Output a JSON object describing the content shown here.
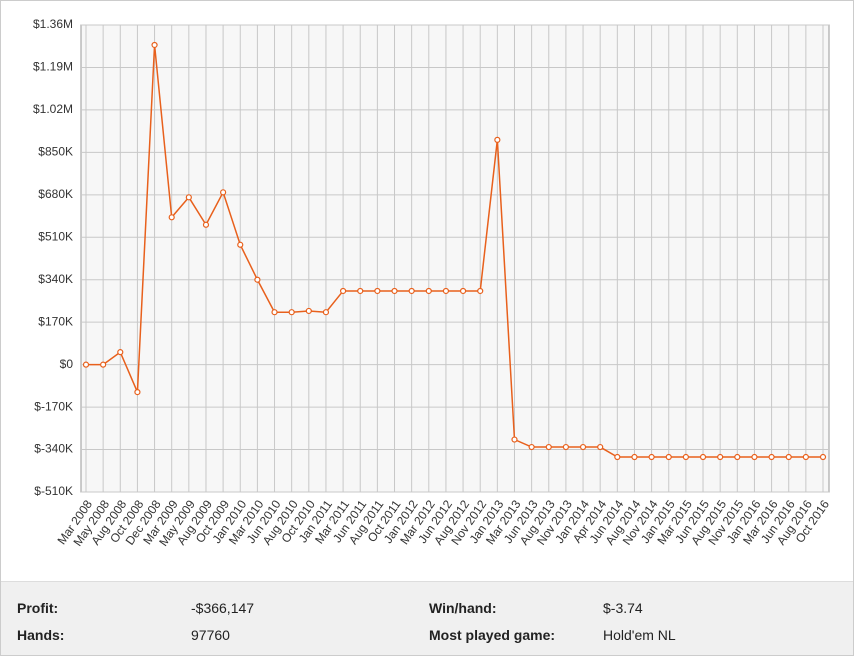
{
  "chart_data": {
    "type": "line",
    "categories": [
      "Mar 2008",
      "May 2008",
      "Aug 2008",
      "Oct 2008",
      "Dec 2008",
      "Mar 2009",
      "May 2009",
      "Aug 2009",
      "Oct 2009",
      "Jan 2010",
      "Mar 2010",
      "Jun 2010",
      "Aug 2010",
      "Oct 2010",
      "Jan 2011",
      "Mar 2011",
      "Jun 2011",
      "Aug 2011",
      "Oct 2011",
      "Jan 2012",
      "Mar 2012",
      "Jun 2012",
      "Aug 2012",
      "Nov 2012",
      "Jan 2013",
      "Mar 2013",
      "Jun 2013",
      "Aug 2013",
      "Nov 2013",
      "Jan 2014",
      "Apr 2014",
      "Jun 2014",
      "Aug 2014",
      "Nov 2014",
      "Jan 2015",
      "Mar 2015",
      "Jun 2015",
      "Aug 2015",
      "Nov 2015",
      "Jan 2016",
      "Mar 2016",
      "Jun 2016",
      "Aug 2016",
      "Oct 2016"
    ],
    "values": [
      0,
      0,
      50000,
      -110000,
      1280000,
      590000,
      670000,
      560000,
      690000,
      480000,
      340000,
      210000,
      210000,
      215000,
      210000,
      295000,
      295000,
      295000,
      295000,
      295000,
      295000,
      295000,
      295000,
      295000,
      900000,
      -300000,
      -330000,
      -330000,
      -330000,
      -330000,
      -330000,
      -370000,
      -370000,
      -370000,
      -370000,
      -370000,
      -370000,
      -370000,
      -370000,
      -370000,
      -370000,
      -370000,
      -370000,
      -370000
    ],
    "color": "#e8601c",
    "ylim": [
      -510000,
      1360000
    ],
    "yticks": [
      {
        "value": -510000,
        "label": "$-510K"
      },
      {
        "value": -340000,
        "label": "$-340K"
      },
      {
        "value": -170000,
        "label": "$-170K"
      },
      {
        "value": 0,
        "label": "$0"
      },
      {
        "value": 170000,
        "label": "$170K"
      },
      {
        "value": 340000,
        "label": "$340K"
      },
      {
        "value": 510000,
        "label": "$510K"
      },
      {
        "value": 680000,
        "label": "$680K"
      },
      {
        "value": 850000,
        "label": "$850K"
      },
      {
        "value": 1020000,
        "label": "$1.02M"
      },
      {
        "value": 1190000,
        "label": "$1.19M"
      },
      {
        "value": 1360000,
        "label": "$1.36M"
      }
    ],
    "grid": true
  },
  "stats": {
    "rows": [
      [
        "Profit:",
        "-$366,147",
        "Win/hand:",
        "$-3.74"
      ],
      [
        "Hands:",
        "97760",
        "Most played game:",
        "Hold'em NL"
      ]
    ]
  }
}
